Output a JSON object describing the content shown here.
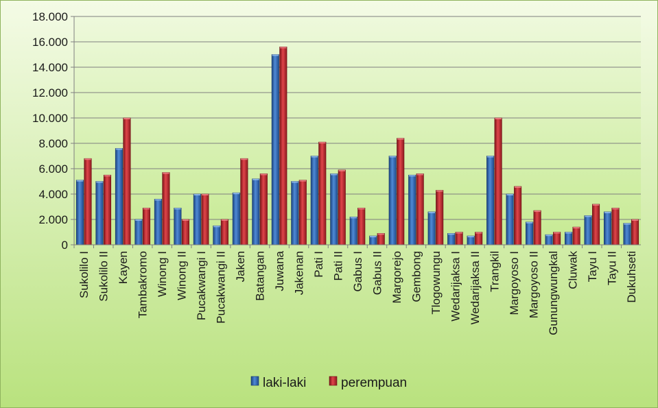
{
  "chart_data": {
    "type": "bar",
    "title": "",
    "xlabel": "",
    "ylabel": "",
    "ylim": [
      0,
      18000
    ],
    "yticks": [
      0,
      2000,
      4000,
      6000,
      8000,
      10000,
      12000,
      14000,
      16000,
      18000
    ],
    "ytick_labels": [
      "0",
      "2.000",
      "4.000",
      "6.000",
      "8.000",
      "10.000",
      "12.000",
      "14.000",
      "16.000",
      "18.000"
    ],
    "grid": true,
    "legend_position": "bottom",
    "categories": [
      "Sukolilo I",
      "Sukolilo II",
      "Kayen",
      "Tambakromo",
      "Winong I",
      "Winong II",
      "Pucakwangi I",
      "Pucakwangi II",
      "Jaken",
      "Batangan",
      "Juwana",
      "Jakenan",
      "Pati I",
      "Pati II",
      "Gabus I",
      "Gabus II",
      "Margorejo",
      "Gembong",
      "Tlogowungu",
      "Wedarijaksa I",
      "Wedarijaksa II",
      "Trangkil",
      "Margoyoso I",
      "Margoyoso II",
      "Gunungwungkal",
      "Cluwak",
      "Tayu I",
      "Tayu II",
      "Dukuhseti"
    ],
    "series": [
      {
        "name": "laki-laki",
        "color": "#2f66b3",
        "values": [
          5100,
          5000,
          7600,
          2000,
          3600,
          2900,
          4000,
          1500,
          4100,
          5200,
          15000,
          5000,
          7000,
          5600,
          2200,
          700,
          7000,
          5500,
          2600,
          900,
          700,
          7000,
          4000,
          1800,
          800,
          1000,
          2300,
          2600,
          1700
        ]
      },
      {
        "name": "perempuan",
        "color": "#c0282d",
        "values": [
          6800,
          5500,
          10000,
          2900,
          5700,
          2000,
          4000,
          2000,
          6800,
          5600,
          15600,
          5100,
          8100,
          5900,
          2900,
          900,
          8400,
          5600,
          4300,
          1000,
          1000,
          10000,
          4600,
          2700,
          1000,
          1400,
          3200,
          2900,
          2000
        ]
      }
    ]
  }
}
